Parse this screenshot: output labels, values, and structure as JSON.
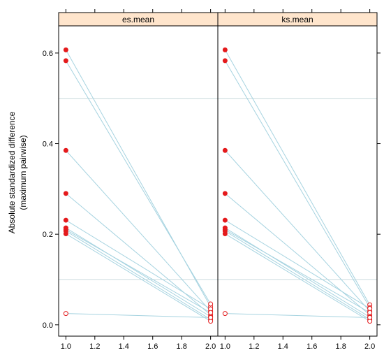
{
  "chart_data": {
    "type": "line",
    "ylabel_line1": "Absolute standardized difference",
    "ylabel_line2": "(maximum pairwise)",
    "xlim": [
      0.95,
      2.05
    ],
    "ylim": [
      -0.025,
      0.66
    ],
    "x_ticks": [
      "1.0",
      "1.2",
      "1.4",
      "1.6",
      "1.8",
      "2.0"
    ],
    "y_ticks": [
      "0.0",
      "0.2",
      "0.4",
      "0.6"
    ],
    "reference_lines": [
      0.1,
      0.5
    ],
    "colors": {
      "segment": "#a6d3e0",
      "point": "#e41a1c",
      "strip": "#ffe5cc",
      "reference": "#c8d8dc",
      "frame": "#000000"
    },
    "panels": [
      {
        "title": "es.mean",
        "pairs": [
          {
            "before": 0.607,
            "after": 0.04,
            "before_filled": true,
            "after_filled": false
          },
          {
            "before": 0.583,
            "after": 0.046,
            "before_filled": true,
            "after_filled": false
          },
          {
            "before": 0.385,
            "after": 0.03,
            "before_filled": true,
            "after_filled": false
          },
          {
            "before": 0.29,
            "after": 0.022,
            "before_filled": true,
            "after_filled": false
          },
          {
            "before": 0.231,
            "after": 0.035,
            "before_filled": true,
            "after_filled": false
          },
          {
            "before": 0.214,
            "after": 0.018,
            "before_filled": true,
            "after_filled": false
          },
          {
            "before": 0.21,
            "after": 0.027,
            "before_filled": true,
            "after_filled": false
          },
          {
            "before": 0.207,
            "after": 0.012,
            "before_filled": true,
            "after_filled": false
          },
          {
            "before": 0.201,
            "after": 0.008,
            "before_filled": true,
            "after_filled": false
          },
          {
            "before": 0.025,
            "after": 0.016,
            "before_filled": false,
            "after_filled": false
          }
        ]
      },
      {
        "title": "ks.mean",
        "pairs": [
          {
            "before": 0.607,
            "after": 0.044,
            "before_filled": true,
            "after_filled": false
          },
          {
            "before": 0.583,
            "after": 0.038,
            "before_filled": true,
            "after_filled": false
          },
          {
            "before": 0.385,
            "after": 0.03,
            "before_filled": true,
            "after_filled": false
          },
          {
            "before": 0.29,
            "after": 0.022,
            "before_filled": true,
            "after_filled": false
          },
          {
            "before": 0.231,
            "after": 0.036,
            "before_filled": true,
            "after_filled": false
          },
          {
            "before": 0.214,
            "after": 0.017,
            "before_filled": true,
            "after_filled": false
          },
          {
            "before": 0.21,
            "after": 0.027,
            "before_filled": true,
            "after_filled": false
          },
          {
            "before": 0.207,
            "after": 0.012,
            "before_filled": true,
            "after_filled": false
          },
          {
            "before": 0.201,
            "after": 0.008,
            "before_filled": true,
            "after_filled": false
          },
          {
            "before": 0.025,
            "after": 0.016,
            "before_filled": false,
            "after_filled": false
          }
        ]
      }
    ]
  }
}
